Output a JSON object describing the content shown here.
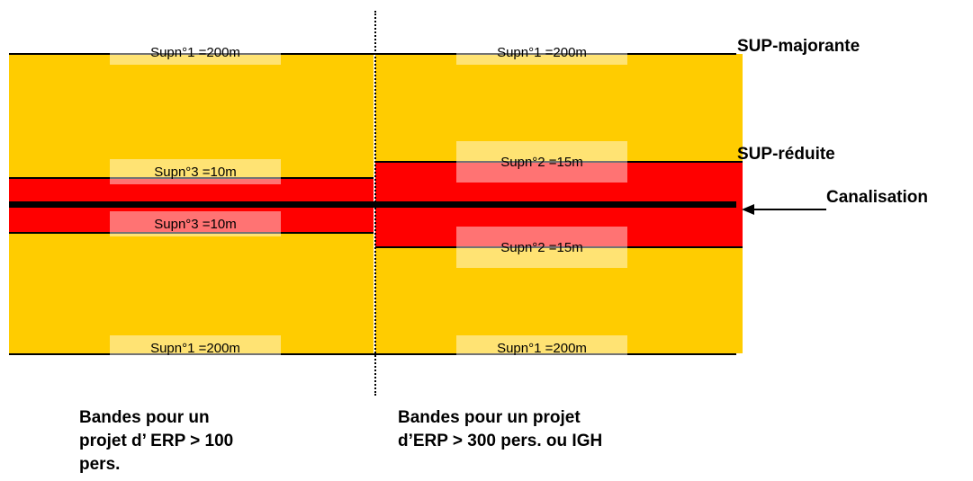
{
  "labels": {
    "left_top": "Supn°1 =200m",
    "left_mid_top": "Supn°3 =10m",
    "left_mid_bottom": "Supn°3 =10m",
    "left_bottom": "Supn°1 =200m",
    "right_top": "Supn°1 =200m",
    "right_mid_top": "Supn°2 =15m",
    "right_mid_bottom": "Supn°2 =15m",
    "right_bottom": "Supn°1 =200m"
  },
  "side_labels": {
    "majorante": "SUP-majorante",
    "reduite": "SUP-réduite",
    "canalisation": "Canalisation"
  },
  "captions": {
    "left_line1": "Bandes pour un",
    "left_line2": "projet d’ ERP > 100",
    "left_line3": "pers.",
    "right_line1": "Bandes pour un projet",
    "right_line2": "d’ERP > 300 pers. ou IGH"
  },
  "colors": {
    "outer_band": "#FFCC00",
    "inner_band": "#FF0000",
    "pipeline": "#000000"
  }
}
